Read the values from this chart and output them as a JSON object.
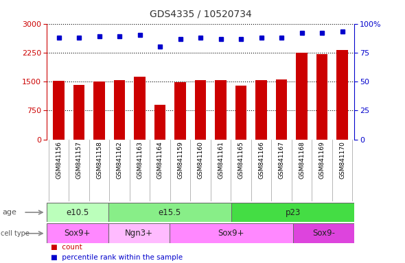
{
  "title": "GDS4335 / 10520734",
  "samples": [
    "GSM841156",
    "GSM841157",
    "GSM841158",
    "GSM841162",
    "GSM841163",
    "GSM841164",
    "GSM841159",
    "GSM841160",
    "GSM841161",
    "GSM841165",
    "GSM841166",
    "GSM841167",
    "GSM841168",
    "GSM841169",
    "GSM841170"
  ],
  "counts": [
    1510,
    1420,
    1500,
    1540,
    1630,
    900,
    1490,
    1530,
    1530,
    1390,
    1530,
    1560,
    2240,
    2210,
    2320
  ],
  "percentiles": [
    88,
    88,
    89,
    89,
    90,
    80,
    87,
    88,
    87,
    87,
    88,
    88,
    92,
    92,
    93
  ],
  "ylim_left": [
    0,
    3000
  ],
  "ylim_right": [
    0,
    100
  ],
  "yticks_left": [
    0,
    750,
    1500,
    2250,
    3000
  ],
  "yticks_right": [
    0,
    25,
    50,
    75,
    100
  ],
  "bar_color": "#cc0000",
  "dot_color": "#0000cc",
  "age_groups": [
    {
      "label": "e10.5",
      "start": 0,
      "end": 3,
      "color": "#bbffbb"
    },
    {
      "label": "e15.5",
      "start": 3,
      "end": 9,
      "color": "#88ee88"
    },
    {
      "label": "p23",
      "start": 9,
      "end": 15,
      "color": "#44dd44"
    }
  ],
  "cell_groups": [
    {
      "label": "Sox9+",
      "start": 0,
      "end": 3,
      "color": "#ff88ff"
    },
    {
      "label": "Ngn3+",
      "start": 3,
      "end": 6,
      "color": "#ffbbff"
    },
    {
      "label": "Sox9+",
      "start": 6,
      "end": 12,
      "color": "#ff88ff"
    },
    {
      "label": "Sox9-",
      "start": 12,
      "end": 15,
      "color": "#dd44dd"
    }
  ],
  "bg_color": "#ffffff",
  "tick_area_color": "#cccccc",
  "grid_color": "#000000",
  "left_axis_color": "#cc0000",
  "right_axis_color": "#0000cc"
}
